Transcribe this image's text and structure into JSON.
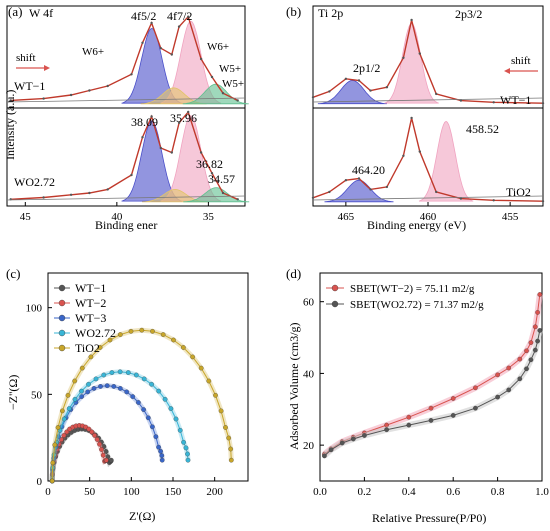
{
  "chart_data": [
    {
      "type": "line",
      "panel_label": "(a)",
      "title": "W 4f",
      "xlabel": "Binding ener",
      "ylabel": "Intensity (a.u.)",
      "xlim": [
        46,
        33
      ],
      "x_ticks": [
        45,
        40,
        35
      ],
      "reversed_x": true,
      "series": [
        {
          "name": "WT−1",
          "x": [
            45.8,
            44,
            42.5,
            41.5,
            40.5,
            39.2,
            38.6,
            38.1,
            37.6,
            37,
            36.6,
            36.1,
            35.4,
            34.8,
            34.2,
            33.4
          ],
          "y": [
            0.04,
            0.06,
            0.1,
            0.15,
            0.2,
            0.33,
            0.68,
            0.9,
            0.62,
            0.55,
            0.86,
            0.97,
            0.5,
            0.3,
            0.12,
            0.04
          ]
        },
        {
          "name": "WO2.72",
          "x": [
            45.8,
            44,
            42.5,
            41.5,
            40.5,
            39.2,
            38.6,
            38.1,
            37.6,
            37,
            36.6,
            36.1,
            35.4,
            34.8,
            34.2,
            33.4
          ],
          "y": [
            0.03,
            0.05,
            0.08,
            0.1,
            0.14,
            0.3,
            0.72,
            0.95,
            0.6,
            0.55,
            0.88,
            1.0,
            0.55,
            0.32,
            0.1,
            0.03
          ]
        }
      ],
      "annotations": {
        "peak_labels_top": [
          "4f5/2",
          "4f7/2"
        ],
        "w6_left": "W6+",
        "w6_right": "W6+",
        "w5_a": "W5+",
        "w5_b": "W5+",
        "shift": "shift",
        "values": [
          "38.09",
          "35.96",
          "36.82",
          "34.57"
        ],
        "sample_top": "WT−1",
        "sample_bottom": "WO2.72"
      }
    },
    {
      "type": "line",
      "panel_label": "(b)",
      "title": "Ti 2p",
      "xlabel": "Binding energy (eV)",
      "xlim": [
        467,
        453
      ],
      "x_ticks": [
        465,
        460,
        455
      ],
      "reversed_x": true,
      "series": [
        {
          "name": "WT−1",
          "x": [
            467,
            466,
            465,
            464.2,
            463.5,
            462.5,
            461.5,
            461,
            460.5,
            459.5,
            458,
            456,
            453
          ],
          "y": [
            0.08,
            0.15,
            0.3,
            0.28,
            0.16,
            0.2,
            0.55,
            1.0,
            0.6,
            0.12,
            0.04,
            0.02,
            0.01
          ]
        },
        {
          "name": "TiO2",
          "x": [
            467,
            466,
            465,
            464.2,
            463.5,
            462.5,
            461.5,
            461,
            460.5,
            459.5,
            458,
            456,
            453
          ],
          "y": [
            0.05,
            0.12,
            0.26,
            0.28,
            0.15,
            0.18,
            0.55,
            1.0,
            0.6,
            0.12,
            0.04,
            0.02,
            0.01
          ]
        }
      ],
      "annotations": {
        "peak_left": "2p1/2",
        "peak_right": "2p3/2",
        "shift": "shift",
        "values": [
          "464.20",
          "458.52"
        ],
        "sample_top": "WT−1",
        "sample_bottom": "TiO2"
      }
    },
    {
      "type": "scatter",
      "panel_label": "(c)",
      "xlabel": "Z'(Ω)",
      "ylabel": "−Z''(Ω)",
      "xlim": [
        0,
        240
      ],
      "ylim": [
        0,
        120
      ],
      "x_ticks": [
        0,
        50,
        100,
        150,
        200
      ],
      "y_ticks": [
        0,
        50,
        100
      ],
      "series": [
        {
          "name": "WT−1",
          "color": "#555555",
          "z_start": 5,
          "z_end": 76,
          "peak": 30
        },
        {
          "name": "WT−2",
          "color": "#d9534f",
          "z_start": 5,
          "z_end": 70,
          "peak": 32
        },
        {
          "name": "WT−3",
          "color": "#3a66c8",
          "z_start": 5,
          "z_end": 137,
          "peak": 55
        },
        {
          "name": "WO2.72",
          "color": "#38b5d6",
          "z_start": 5,
          "z_end": 168,
          "peak": 63
        },
        {
          "name": "TiO2",
          "color": "#c8a62a",
          "z_start": 5,
          "z_end": 220,
          "peak": 87
        }
      ]
    },
    {
      "type": "line",
      "panel_label": "(d)",
      "xlabel": "Relative Pressure(P/P0)",
      "ylabel": "Adsorbed Volume (cm3/g)",
      "xlim": [
        0,
        1.0
      ],
      "ylim": [
        10,
        68
      ],
      "x_ticks": [
        0.0,
        0.2,
        0.4,
        0.6,
        0.8,
        1.0
      ],
      "y_ticks": [
        20,
        40,
        60
      ],
      "series": [
        {
          "name": "SBET(WT−2) = 75.11 m2/g",
          "color": "#d9534f",
          "x": [
            0.02,
            0.05,
            0.1,
            0.15,
            0.2,
            0.3,
            0.4,
            0.5,
            0.6,
            0.7,
            0.8,
            0.85,
            0.9,
            0.93,
            0.95,
            0.97,
            0.98,
            0.99
          ],
          "y": [
            17.5,
            19,
            21,
            22.2,
            23.4,
            25.6,
            27.8,
            30.3,
            33,
            36,
            39.6,
            41.5,
            44,
            46.3,
            48.6,
            53,
            57,
            62
          ]
        },
        {
          "name": "SBET(WO2.72) = 71.37 m2/g",
          "color": "#555555",
          "x": [
            0.02,
            0.05,
            0.1,
            0.15,
            0.2,
            0.3,
            0.4,
            0.5,
            0.6,
            0.7,
            0.8,
            0.85,
            0.9,
            0.93,
            0.95,
            0.97,
            0.98,
            0.99
          ],
          "y": [
            17,
            18.7,
            20.6,
            21.7,
            22.7,
            24.3,
            25.6,
            26.9,
            28.3,
            30.3,
            33.4,
            35.4,
            38.5,
            41.3,
            43.8,
            46.5,
            49,
            52
          ]
        }
      ]
    }
  ],
  "panel_c_legend": [
    "WT−1",
    "WT−2",
    "WT−3",
    "WO2.72",
    "TiO2"
  ],
  "panel_d_legend": [
    "SBET(WT−2) = 75.11 m2/g",
    "SBET(WO2.72) = 71.37 m2/g"
  ]
}
